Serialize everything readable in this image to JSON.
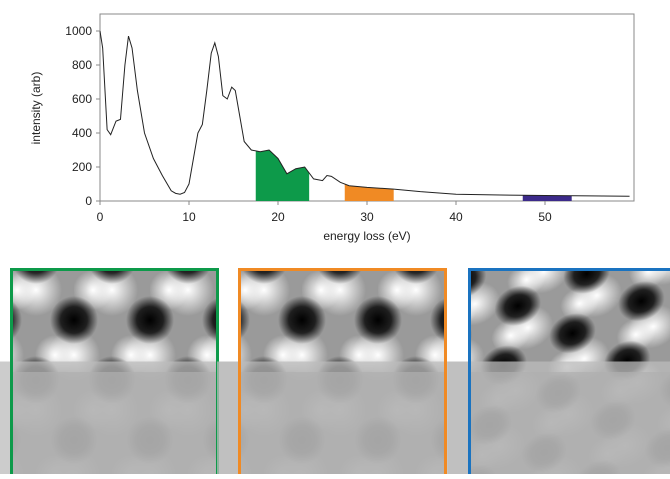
{
  "chart_data": {
    "type": "line",
    "xlabel": "energy loss (eV)",
    "ylabel": "intensity (arb)",
    "x": [
      0,
      0.3,
      0.8,
      1.2,
      1.8,
      2.3,
      2.8,
      3.2,
      3.6,
      4.2,
      5,
      6,
      7,
      8,
      8.5,
      9,
      9.5,
      10,
      10.5,
      11,
      11.5,
      12,
      12.5,
      12.9,
      13.3,
      13.8,
      14.3,
      14.8,
      15.2,
      15.7,
      16.2,
      17,
      18,
      19,
      20,
      21,
      22,
      23,
      24,
      25,
      25.5,
      26,
      27,
      28,
      30,
      33,
      36,
      40,
      45,
      50,
      55,
      59.5
    ],
    "values": [
      1000,
      900,
      420,
      390,
      470,
      480,
      800,
      970,
      900,
      650,
      400,
      250,
      150,
      60,
      45,
      40,
      50,
      100,
      250,
      400,
      450,
      650,
      870,
      930,
      850,
      620,
      600,
      670,
      650,
      500,
      350,
      300,
      290,
      300,
      250,
      160,
      190,
      200,
      130,
      120,
      150,
      145,
      110,
      90,
      80,
      70,
      55,
      40,
      35,
      32,
      30,
      28
    ],
    "color": "#222222",
    "highlights": [
      {
        "start": 17.5,
        "end": 23.5,
        "color": "#0d9a4a"
      },
      {
        "start": 27.5,
        "end": 33,
        "color": "#f08a24"
      },
      {
        "start": 47.5,
        "end": 53,
        "color": "#3c2a8a"
      }
    ],
    "xlim": [
      0,
      60
    ],
    "ylim": [
      0,
      1100
    ],
    "xticks": [
      0,
      10,
      20,
      30,
      40,
      50
    ],
    "yticks": [
      0,
      200,
      400,
      600,
      800,
      1000
    ]
  }
}
